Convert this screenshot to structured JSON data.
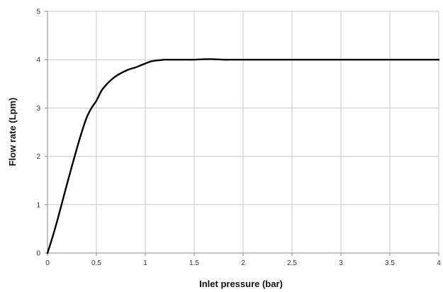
{
  "chart_data": {
    "type": "line",
    "title": "",
    "xlabel": "Inlet pressure (bar)",
    "ylabel": "Flow rate (Lpm)",
    "xlim": [
      0,
      4
    ],
    "ylim": [
      0,
      5
    ],
    "xticks": [
      "0",
      "0.5",
      "1",
      "1.5",
      "2",
      "2.5",
      "3",
      "3.5",
      "4"
    ],
    "yticks": [
      "0",
      "1",
      "2",
      "3",
      "4",
      "5"
    ],
    "grid": true,
    "legend": "none",
    "series": [
      {
        "color": "#000000",
        "x": [
          0,
          0.05,
          0.1,
          0.15,
          0.2,
          0.25,
          0.3,
          0.35,
          0.4,
          0.45,
          0.5,
          0.55,
          0.6,
          0.65,
          0.7,
          0.75,
          0.8,
          0.85,
          0.9,
          0.95,
          1.0,
          1.05,
          1.1,
          1.15,
          1.2,
          1.3,
          1.4,
          1.5,
          1.6,
          1.7,
          1.8,
          1.9,
          2.0,
          2.5,
          3.0,
          3.5,
          4.0
        ],
        "y": [
          0,
          0.32,
          0.67,
          1.05,
          1.43,
          1.8,
          2.16,
          2.5,
          2.8,
          3.0,
          3.15,
          3.35,
          3.48,
          3.58,
          3.66,
          3.72,
          3.77,
          3.81,
          3.84,
          3.88,
          3.92,
          3.96,
          3.98,
          3.99,
          4.0,
          4.0,
          4.0,
          4.0,
          4.01,
          4.01,
          4.0,
          4.0,
          4.0,
          4.0,
          4.0,
          4.0,
          4.0
        ]
      }
    ]
  }
}
